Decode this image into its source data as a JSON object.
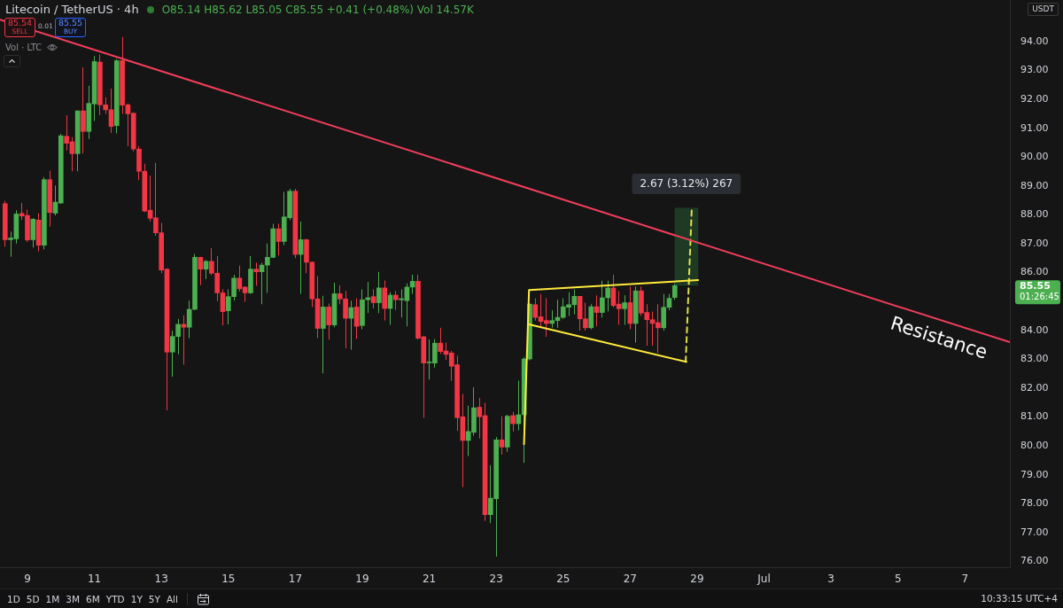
{
  "chart_data": {
    "type": "candlestick",
    "title": "Litecoin / TetherUS · 4h",
    "subtitle": "O85.14 H85.62 L85.05 C85.55 +0.41 (+0.48%) Vol 14.57K",
    "x": [
      "--06-08T08:00",
      "--06-08T12:00",
      "--06-08T16:00",
      "--06-08T20:00",
      "--06-09T00:00",
      "--06-09T04:00",
      "--06-09T08:00",
      "--06-09T12:00",
      "--06-09T16:00",
      "--06-09T20:00",
      "--06-10T00:00",
      "--06-10T04:00",
      "--06-10T08:00",
      "--06-10T12:00",
      "--06-10T16:00",
      "--06-10T20:00",
      "--06-11T00:00",
      "--06-11T04:00",
      "--06-11T08:00",
      "--06-11T12:00",
      "--06-11T16:00",
      "--06-11T20:00",
      "--06-12T00:00",
      "--06-12T04:00",
      "--06-12T08:00",
      "--06-12T12:00",
      "--06-12T16:00",
      "--06-12T20:00",
      "--06-13T00:00",
      "--06-13T04:00",
      "--06-13T08:00",
      "--06-13T12:00",
      "--06-13T16:00",
      "--06-13T20:00",
      "--06-14T00:00",
      "--06-14T04:00",
      "--06-14T08:00",
      "--06-14T12:00",
      "--06-14T16:00",
      "--06-14T20:00",
      "--06-15T00:00",
      "--06-15T04:00",
      "--06-15T08:00",
      "--06-15T12:00",
      "--06-15T16:00",
      "--06-15T20:00",
      "--06-16T00:00",
      "--06-16T04:00",
      "--06-16T08:00",
      "--06-16T12:00",
      "--06-16T16:00",
      "--06-16T20:00",
      "--06-17T00:00",
      "--06-17T04:00",
      "--06-17T08:00",
      "--06-17T12:00",
      "--06-17T16:00",
      "--06-17T20:00",
      "--06-18T00:00",
      "--06-18T04:00",
      "--06-18T08:00",
      "--06-18T12:00",
      "--06-18T16:00",
      "--06-18T20:00",
      "--06-19T00:00",
      "--06-19T04:00",
      "--06-19T08:00",
      "--06-19T12:00",
      "--06-19T16:00",
      "--06-19T20:00",
      "--06-20T00:00",
      "--06-20T04:00",
      "--06-20T08:00",
      "--06-20T12:00",
      "--06-20T16:00",
      "--06-20T20:00",
      "--06-21T00:00",
      "--06-21T04:00",
      "--06-21T08:00",
      "--06-21T12:00",
      "--06-21T16:00",
      "--06-21T20:00",
      "--06-22T00:00",
      "--06-22T04:00",
      "--06-22T08:00",
      "--06-22T12:00",
      "--06-22T16:00",
      "--06-22T20:00",
      "--06-23T00:00",
      "--06-23T04:00",
      "--06-23T08:00",
      "--06-23T12:00",
      "--06-23T16:00",
      "--06-23T20:00",
      "--06-24T00:00",
      "--06-24T04:00",
      "--06-24T08:00",
      "--06-24T12:00",
      "--06-24T16:00",
      "--06-24T20:00",
      "--06-25T00:00",
      "--06-25T04:00",
      "--06-25T08:00",
      "--06-25T12:00",
      "--06-25T16:00",
      "--06-25T20:00",
      "--06-26T00:00",
      "--06-26T04:00",
      "--06-26T08:00",
      "--06-26T12:00",
      "--06-26T16:00",
      "--06-26T20:00",
      "--06-27T00:00",
      "--06-27T04:00",
      "--06-27T08:00",
      "--06-27T12:00",
      "--06-27T16:00",
      "--06-27T20:00",
      "--06-28T00:00",
      "--06-28T04:00",
      "--06-28T08:00"
    ],
    "ohlc": [
      [
        88.39,
        88.49,
        86.9,
        87.14
      ],
      [
        87.14,
        87.42,
        86.55,
        87.2
      ],
      [
        87.17,
        88.16,
        87.01,
        88.03
      ],
      [
        88.05,
        88.41,
        87.82,
        87.96
      ],
      [
        87.98,
        88.18,
        87.06,
        87.13
      ],
      [
        87.14,
        87.88,
        86.87,
        87.85
      ],
      [
        87.82,
        88.06,
        86.73,
        86.95
      ],
      [
        86.95,
        89.31,
        86.8,
        89.22
      ],
      [
        89.22,
        89.53,
        87.59,
        88.08
      ],
      [
        88.06,
        89.02,
        87.98,
        88.44
      ],
      [
        88.41,
        90.8,
        88.38,
        90.74
      ],
      [
        90.72,
        91.45,
        90.23,
        90.48
      ],
      [
        90.53,
        90.69,
        89.51,
        90.12
      ],
      [
        90.12,
        91.62,
        89.51,
        91.6
      ],
      [
        91.6,
        93.11,
        90.12,
        90.89
      ],
      [
        90.89,
        92.47,
        90.63,
        91.86
      ],
      [
        91.84,
        93.5,
        91.25,
        93.31
      ],
      [
        93.29,
        93.55,
        91.45,
        91.81
      ],
      [
        91.81,
        92.07,
        91.5,
        91.64
      ],
      [
        91.64,
        92.37,
        90.84,
        91.06
      ],
      [
        91.09,
        93.4,
        90.82,
        93.34
      ],
      [
        93.34,
        94.16,
        91.5,
        91.8
      ],
      [
        91.81,
        91.86,
        90.38,
        91.5
      ],
      [
        91.52,
        91.55,
        90.2,
        90.28
      ],
      [
        90.28,
        90.38,
        89.2,
        89.51
      ],
      [
        89.51,
        89.77,
        88.1,
        88.13
      ],
      [
        88.16,
        89.36,
        87.77,
        87.88
      ],
      [
        87.9,
        89.8,
        87.28,
        87.38
      ],
      [
        87.38,
        87.72,
        85.98,
        86.09
      ],
      [
        86.12,
        86.15,
        81.23,
        83.25
      ],
      [
        83.25,
        83.99,
        82.4,
        83.79
      ],
      [
        83.79,
        84.4,
        83.17,
        84.21
      ],
      [
        84.21,
        84.52,
        82.81,
        84.11
      ],
      [
        84.11,
        85.03,
        83.73,
        84.73
      ],
      [
        84.73,
        86.65,
        84.7,
        86.53
      ],
      [
        86.53,
        86.55,
        85.57,
        86.12
      ],
      [
        86.12,
        86.44,
        85.78,
        86.39
      ],
      [
        86.39,
        86.85,
        85.91,
        85.98
      ],
      [
        85.98,
        86.57,
        85.01,
        85.3
      ],
      [
        85.3,
        85.42,
        84.17,
        84.65
      ],
      [
        84.68,
        85.42,
        84.21,
        85.17
      ],
      [
        85.17,
        85.93,
        85.03,
        85.81
      ],
      [
        85.81,
        86.24,
        85.34,
        85.44
      ],
      [
        85.5,
        85.52,
        84.99,
        85.3
      ],
      [
        85.3,
        86.57,
        85.27,
        86.12
      ],
      [
        86.12,
        86.34,
        85.54,
        86.03
      ],
      [
        86.03,
        86.34,
        84.91,
        86.26
      ],
      [
        86.26,
        87.01,
        85.3,
        86.53
      ],
      [
        86.53,
        87.69,
        86.5,
        87.52
      ],
      [
        87.52,
        87.69,
        86.6,
        87.08
      ],
      [
        87.08,
        88.8,
        86.95,
        87.93
      ],
      [
        87.9,
        88.9,
        87.82,
        88.82
      ],
      [
        88.82,
        88.9,
        86.5,
        86.63
      ],
      [
        86.63,
        87.77,
        85.27,
        87.14
      ],
      [
        87.14,
        87.18,
        85.98,
        86.36
      ],
      [
        86.36,
        86.39,
        84.81,
        85.09
      ],
      [
        85.09,
        85.88,
        83.73,
        84.07
      ],
      [
        84.07,
        85.2,
        82.51,
        84.81
      ],
      [
        84.81,
        84.93,
        83.68,
        84.19
      ],
      [
        84.19,
        85.65,
        84.11,
        85.27
      ],
      [
        85.27,
        85.57,
        84.91,
        85.09
      ],
      [
        85.09,
        85.37,
        83.38,
        84.42
      ],
      [
        84.42,
        85.03,
        83.33,
        84.79
      ],
      [
        84.81,
        85.11,
        83.7,
        84.14
      ],
      [
        84.17,
        85.42,
        84.04,
        85.06
      ],
      [
        85.06,
        85.68,
        84.6,
        85.13
      ],
      [
        85.17,
        85.42,
        84.76,
        84.96
      ],
      [
        84.96,
        86.03,
        84.6,
        85.47
      ],
      [
        85.47,
        85.73,
        84.35,
        84.76
      ],
      [
        84.76,
        85.32,
        84.19,
        85.22
      ],
      [
        85.22,
        85.37,
        84.71,
        85.06
      ],
      [
        85.06,
        85.42,
        84.45,
        85.1
      ],
      [
        85.03,
        85.63,
        84.14,
        85.5
      ],
      [
        85.5,
        85.93,
        85.27,
        85.7
      ],
      [
        85.7,
        85.93,
        83.68,
        83.73
      ],
      [
        83.78,
        83.8,
        80.97,
        82.87
      ],
      [
        82.88,
        83.69,
        82.3,
        82.9
      ],
      [
        82.87,
        83.7,
        82.71,
        83.56
      ],
      [
        83.56,
        84.09,
        83.19,
        83.27
      ],
      [
        83.29,
        83.58,
        82.97,
        83.17
      ],
      [
        83.22,
        83.29,
        82.25,
        82.76
      ],
      [
        82.81,
        83.13,
        80.52,
        80.98
      ],
      [
        81.01,
        81.8,
        78.58,
        80.19
      ],
      [
        80.19,
        81.39,
        79.65,
        80.5
      ],
      [
        80.47,
        82.03,
        80.36,
        81.32
      ],
      [
        81.34,
        81.66,
        80.26,
        81.01
      ],
      [
        81.05,
        81.49,
        77.4,
        77.62
      ],
      [
        77.62,
        79.34,
        77.33,
        78.19
      ],
      [
        78.17,
        80.31,
        76.17,
        80.21
      ],
      [
        80.21,
        81.03,
        79.7,
        79.96
      ],
      [
        79.96,
        81.08,
        79.8,
        81.03
      ],
      [
        81.05,
        81.18,
        80.5,
        80.77
      ],
      [
        80.77,
        82.26,
        80.54,
        81.08
      ],
      [
        81.08,
        83.07,
        79.41,
        83.01
      ],
      [
        83.01,
        84.96,
        82.96,
        84.91
      ],
      [
        84.89,
        85.11,
        84.34,
        84.45
      ],
      [
        84.47,
        85.26,
        84.09,
        84.31
      ],
      [
        84.34,
        85.11,
        83.78,
        84.24
      ],
      [
        84.24,
        84.7,
        84.09,
        84.34
      ],
      [
        84.34,
        85.06,
        84.09,
        84.45
      ],
      [
        84.45,
        85.11,
        84.4,
        84.82
      ],
      [
        84.8,
        85.32,
        84.5,
        84.89
      ],
      [
        84.89,
        85.42,
        84.55,
        85.18
      ],
      [
        85.18,
        85.19,
        83.99,
        84.4
      ],
      [
        84.4,
        84.96,
        83.99,
        84.09
      ],
      [
        84.09,
        84.91,
        84.04,
        84.82
      ],
      [
        84.82,
        85.21,
        84.14,
        84.62
      ],
      [
        84.62,
        85.72,
        84.45,
        85.13
      ],
      [
        85.13,
        85.72,
        84.65,
        85.47
      ],
      [
        85.47,
        85.93,
        84.8,
        84.86
      ],
      [
        84.91,
        85.37,
        84.19,
        84.75
      ],
      [
        84.75,
        85.21,
        84.19,
        84.96
      ],
      [
        84.96,
        85.52,
        84.04,
        84.24
      ],
      [
        84.24,
        85.52,
        83.58,
        85.37
      ],
      [
        85.37,
        85.52,
        84.5,
        84.6
      ],
      [
        84.62,
        84.91,
        83.47,
        84.37
      ],
      [
        84.37,
        84.65,
        83.47,
        84.24
      ],
      [
        84.27,
        84.91,
        83.22,
        84.09
      ],
      [
        84.09,
        85.26,
        83.99,
        84.8
      ],
      [
        84.8,
        85.26,
        84.7,
        85.11
      ],
      [
        85.14,
        85.62,
        85.05,
        85.55
      ]
    ],
    "colors": [
      "#f23645",
      "#4caf50",
      "#4caf50",
      "#f23645",
      "#f23645",
      "#4caf50",
      "#f23645",
      "#4caf50",
      "#f23645",
      "#4caf50",
      "#4caf50",
      "#f23645",
      "#f23645",
      "#4caf50",
      "#f23645",
      "#4caf50",
      "#4caf50",
      "#f23645",
      "#f23645",
      "#f23645",
      "#4caf50",
      "#f23645",
      "#f23645",
      "#f23645",
      "#f23645",
      "#f23645",
      "#f23645",
      "#f23645",
      "#f23645",
      "#f23645",
      "#4caf50",
      "#4caf50",
      "#f23645",
      "#4caf50",
      "#4caf50",
      "#f23645",
      "#4caf50",
      "#f23645",
      "#f23645",
      "#f23645",
      "#4caf50",
      "#4caf50",
      "#f23645",
      "#f23645",
      "#4caf50",
      "#f23645",
      "#4caf50",
      "#4caf50",
      "#4caf50",
      "#f23645",
      "#4caf50",
      "#4caf50",
      "#f23645",
      "#4caf50",
      "#f23645",
      "#f23645",
      "#f23645",
      "#4caf50",
      "#f23645",
      "#4caf50",
      "#f23645",
      "#f23645",
      "#4caf50",
      "#f23645",
      "#4caf50",
      "#4caf50",
      "#f23645",
      "#4caf50",
      "#f23645",
      "#4caf50",
      "#f23645",
      "#4caf50",
      "#4caf50",
      "#4caf50",
      "#f23645",
      "#f23645",
      "#4caf50",
      "#4caf50",
      "#f23645",
      "#f23645",
      "#f23645",
      "#f23645",
      "#f23645",
      "#4caf50",
      "#4caf50",
      "#f23645",
      "#f23645",
      "#4caf50",
      "#4caf50",
      "#f23645",
      "#4caf50",
      "#f23645",
      "#4caf50",
      "#4caf50",
      "#4caf50",
      "#f23645",
      "#f23645",
      "#f23645",
      "#4caf50",
      "#4caf50",
      "#4caf50",
      "#4caf50",
      "#4caf50",
      "#f23645",
      "#f23645",
      "#4caf50",
      "#f23645",
      "#4caf50",
      "#4caf50",
      "#f23645",
      "#f23645",
      "#4caf50",
      "#f23645",
      "#4caf50",
      "#f23645",
      "#f23645",
      "#f23645",
      "#f23645",
      "#4caf50",
      "#4caf50",
      "#4caf50"
    ],
    "series": [
      {
        "type": "bar",
        "x": [
          "--06-28T16:19"
        ],
        "base": [
          85.56
        ],
        "values": [
          2.67
        ],
        "color": "#1f3a24"
      },
      {
        "type": "line",
        "name": "Resistance",
        "x": [
          "--06-08T04:19",
          "--07-08T08:10"
        ],
        "values": [
          94.76,
          83.59
        ],
        "color": "#f23e5a"
      },
      {
        "type": "line",
        "x": [
          "--06-23T19:55",
          "--06-23T23:31",
          "--06-29T00:43"
        ],
        "values": [
          80.06,
          85.4,
          85.74
        ],
        "color": "#ffeb3b"
      },
      {
        "type": "line",
        "x": [
          "--06-23T23:31",
          "--06-28T16:19"
        ],
        "values": [
          84.21,
          82.91
        ],
        "color": "#ffeb3b"
      },
      {
        "type": "line",
        "x": [
          "--06-28T15:50",
          "--06-28T20:10"
        ],
        "values": [
          82.91,
          88.23
        ],
        "color": "#e0e04a",
        "line_style": "dashed"
      }
    ],
    "xlim": [
      "--06-08T04:19",
      "--07-08T08:10"
    ],
    "xticks": [
      {
        "value": "--06-09",
        "label": "9"
      },
      {
        "value": "--06-11",
        "label": "11"
      },
      {
        "value": "--06-13",
        "label": "13"
      },
      {
        "value": "--06-15",
        "label": "15"
      },
      {
        "value": "--06-17",
        "label": "17"
      },
      {
        "value": "--06-19",
        "label": "19"
      },
      {
        "value": "--06-21",
        "label": "21"
      },
      {
        "value": "--06-23",
        "label": "23"
      },
      {
        "value": "--06-25",
        "label": "25"
      },
      {
        "value": "--06-27",
        "label": "27"
      },
      {
        "value": "--06-29",
        "label": "29"
      },
      {
        "value": "--07-01",
        "label": "Jul"
      },
      {
        "value": "--07-03",
        "label": "3"
      },
      {
        "value": "--07-05",
        "label": "5"
      },
      {
        "value": "--07-07",
        "label": "7"
      }
    ],
    "ylim": [
      75.8,
      95.44
    ],
    "yticks": [
      {
        "value": 76,
        "label": "76.00"
      },
      {
        "value": 77,
        "label": "77.00"
      },
      {
        "value": 78,
        "label": "78.00"
      },
      {
        "value": 79,
        "label": "79.00"
      },
      {
        "value": 80,
        "label": "80.00"
      },
      {
        "value": 81,
        "label": "81.00"
      },
      {
        "value": 82,
        "label": "82.00"
      },
      {
        "value": 83,
        "label": "83.00"
      },
      {
        "value": 84,
        "label": "84.00"
      },
      {
        "value": 86,
        "label": "86.00"
      },
      {
        "value": 87,
        "label": "87.00"
      },
      {
        "value": 88,
        "label": "88.00"
      },
      {
        "value": 89,
        "label": "89.00"
      },
      {
        "value": 90,
        "label": "90.00"
      },
      {
        "value": 91,
        "label": "91.00"
      },
      {
        "value": 92,
        "label": "92.00"
      },
      {
        "value": 93,
        "label": "93.00"
      },
      {
        "value": 94,
        "label": "94.00"
      }
    ],
    "annotations": [
      "85.54",
      "SELL",
      "0.01",
      "85.55",
      "BUY",
      "Vol · LTC",
      "USDT",
      "85.55",
      "01:26:45",
      {
        "text": "2.67 (3.12%) 267",
        "x": "--06-28T16:19",
        "y": 88.23
      },
      "1D",
      "5D",
      "1M",
      "3M",
      "6M",
      "YTD",
      "1Y",
      "5Y",
      "All",
      "10:33:15 UTC+4"
    ]
  }
}
